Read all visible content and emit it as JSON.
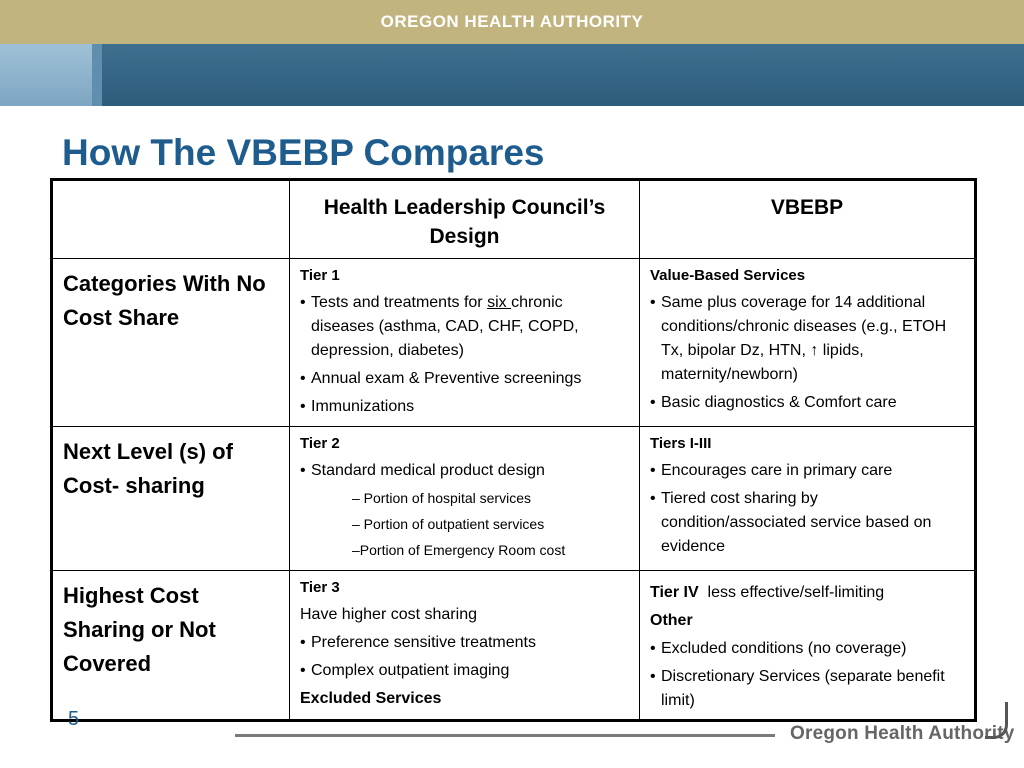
{
  "header": {
    "org": "OREGON HEALTH AUTHORITY"
  },
  "title": "How The VBEBP Compares",
  "table": {
    "columns": [
      "",
      "Health Leadership Council’s Design",
      "VBEBP"
    ],
    "rows": [
      {
        "label": "Categories With No Cost Share",
        "hlc": {
          "tier": "Tier 1",
          "b1_pre": "Tests and treatments for ",
          "b1_u": "six ",
          "b1_post": "chronic diseases (asthma, CAD, CHF, COPD, depression, diabetes)",
          "b2": "Annual exam & Preventive screenings",
          "b3": "Immunizations"
        },
        "vbebp": {
          "tier": "Value-Based Services",
          "b1": "Same plus coverage for 14 additional conditions/chronic diseases (e.g., ETOH Tx, bipolar Dz, HTN,  ↑ lipids, maternity/newborn)",
          "b2": "Basic diagnostics & Comfort care"
        }
      },
      {
        "label": "Next Level (s) of Cost- sharing",
        "hlc": {
          "tier": "Tier 2",
          "b1": " Standard medical product design",
          "s1": "– Portion of hospital services",
          "s2": "– Portion of outpatient services",
          "s3": "–Portion of Emergency Room cost"
        },
        "vbebp": {
          "tier": "Tiers I-III",
          "b1": "Encourages care in primary care",
          "b2": "Tiered cost sharing by condition/associated service based on evidence"
        }
      },
      {
        "label": "Highest Cost Sharing or Not Covered",
        "hlc": {
          "tier": "Tier 3",
          "line": "Have higher cost sharing",
          "b1": "Preference sensitive treatments",
          "b2": "Complex outpatient imaging",
          "excluded": "Excluded Services"
        },
        "vbebp": {
          "tier": "Tier IV",
          "tier_note": "  less effective/self-limiting",
          "other": "Other",
          "b1": "Excluded conditions (no coverage)",
          "b2": "Discretionary Services (separate benefit limit)"
        }
      }
    ]
  },
  "footer": {
    "page": "5",
    "logo": "Oregon Health Authority"
  }
}
